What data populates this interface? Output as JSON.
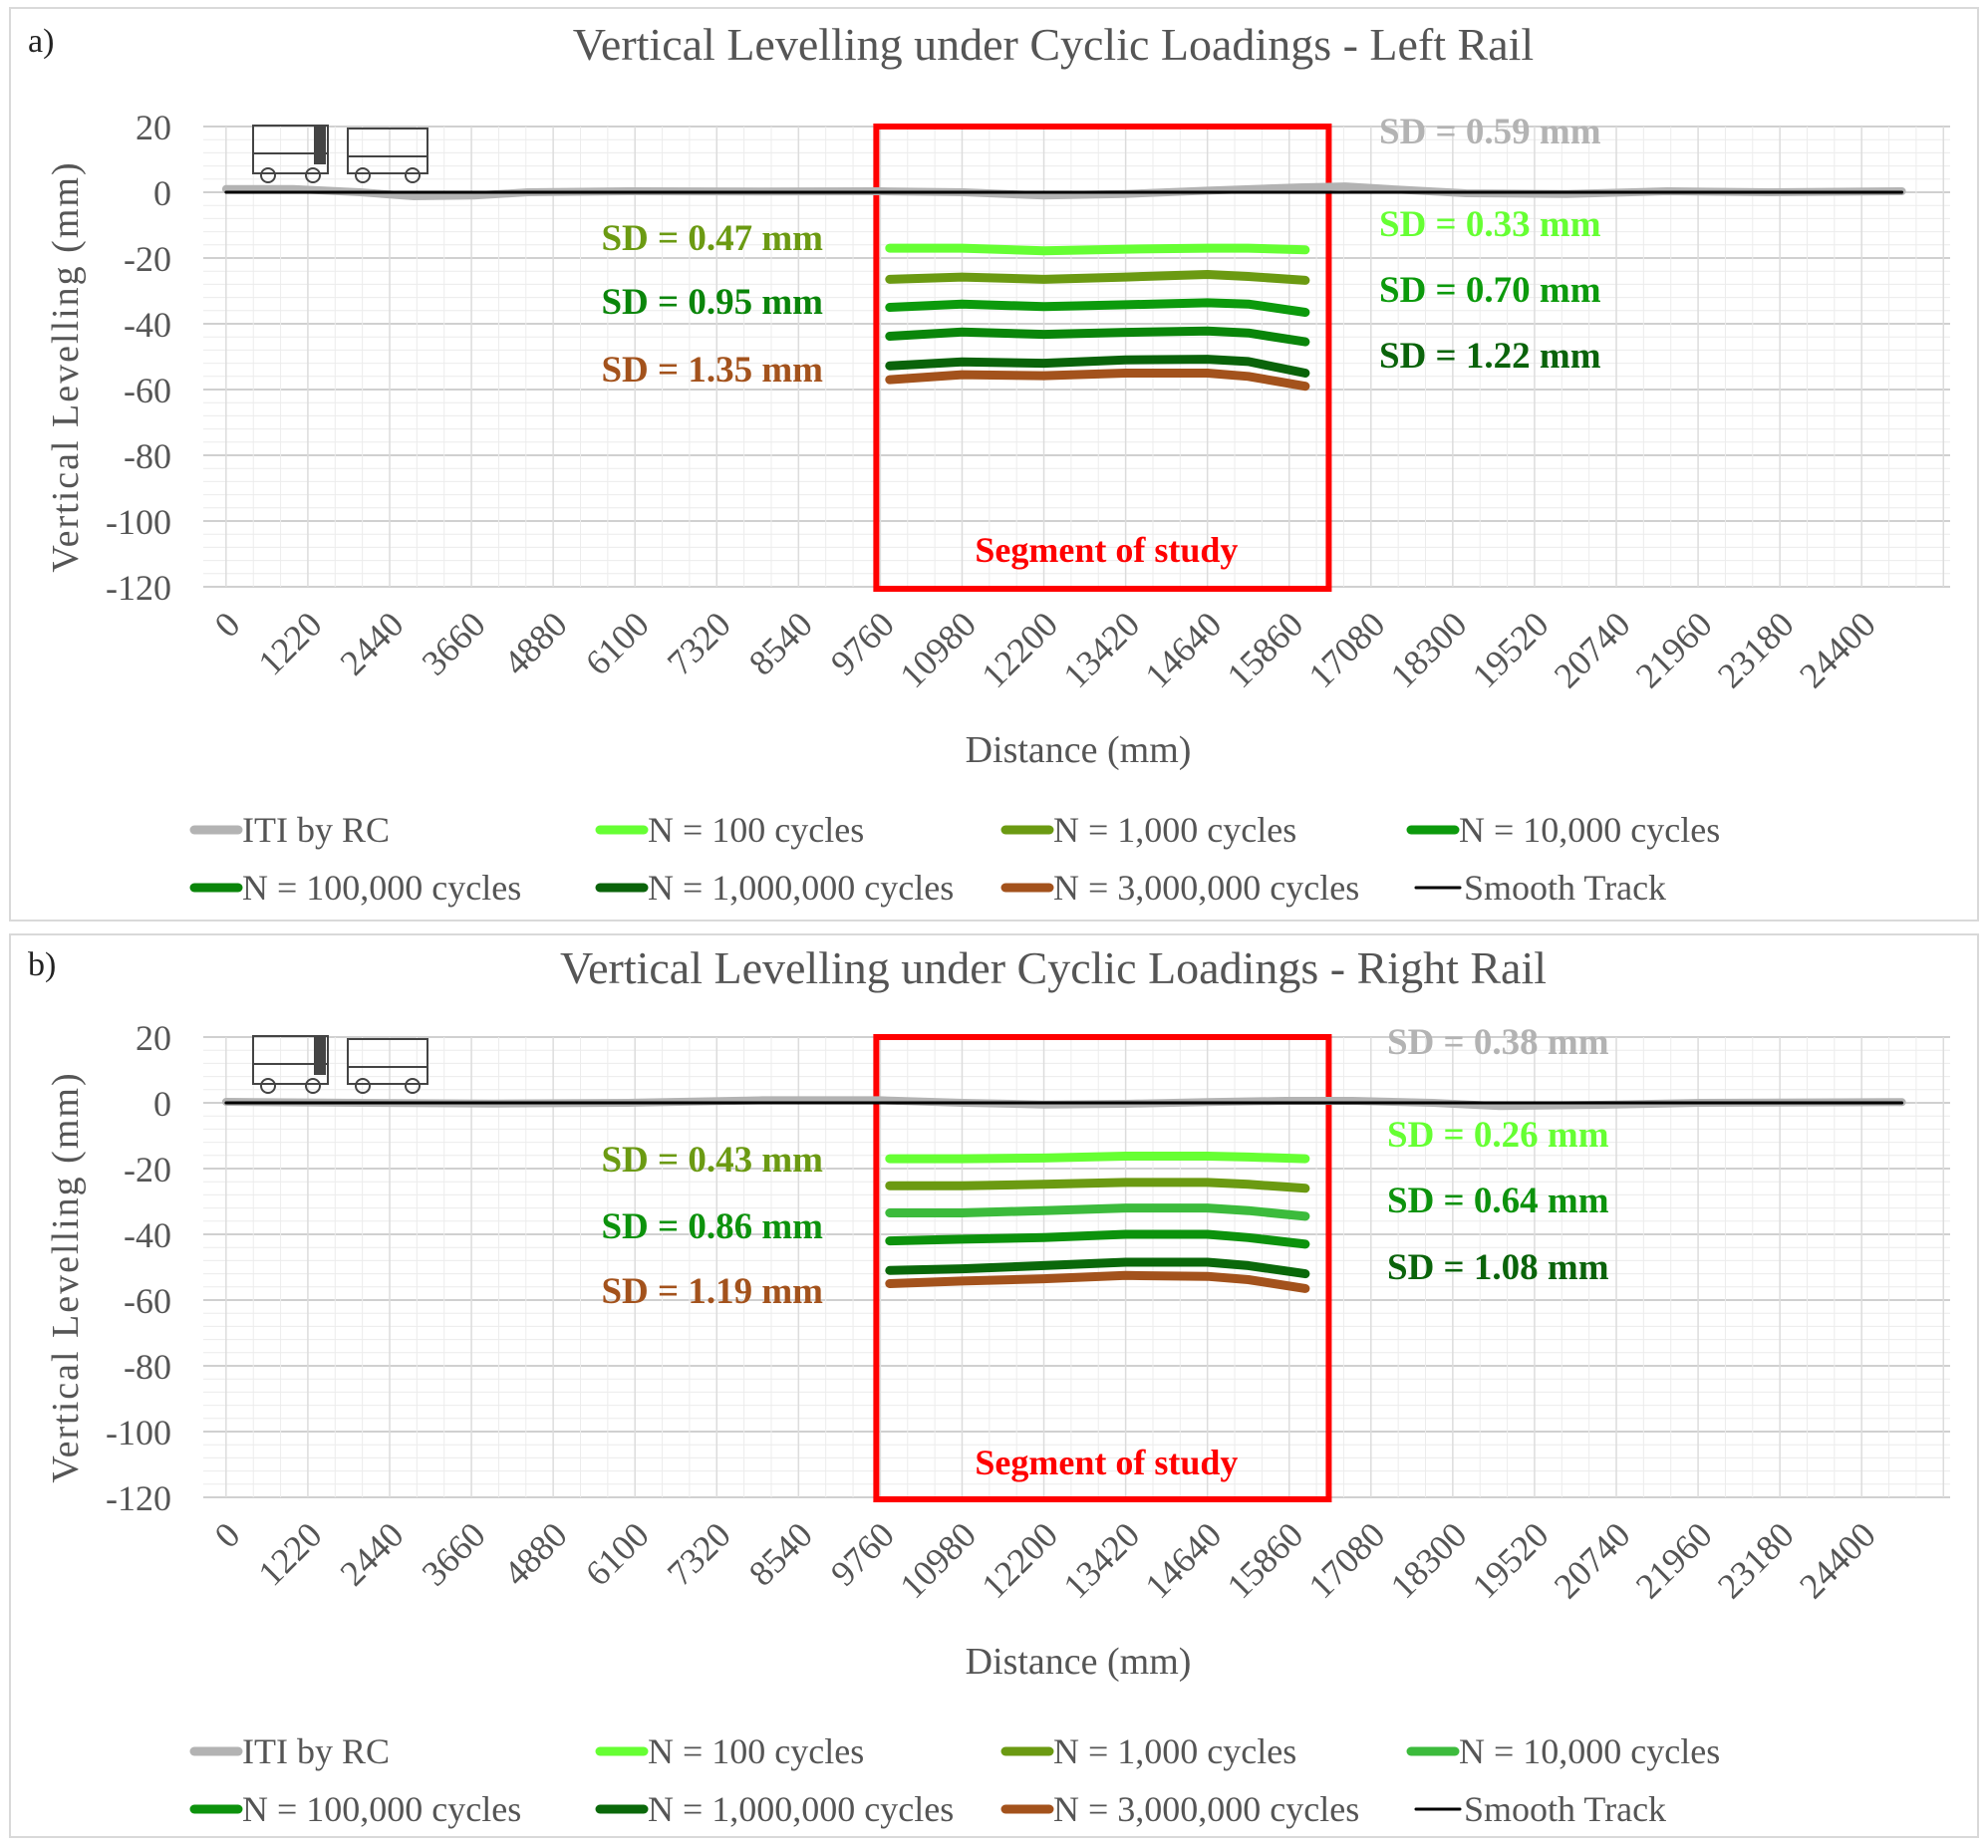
{
  "chart_data": [
    {
      "type": "line",
      "panel_label": "a)",
      "title": "Vertical Levelling under Cyclic Loadings - Left Rail",
      "xlabel": "Distance (mm)",
      "ylabel": "Vertical Levelling (mm)",
      "xlim": [
        -340,
        25720
      ],
      "ylim": [
        -120,
        20
      ],
      "grid": true,
      "x_ticks": [
        "0",
        "1220",
        "2440",
        "3660",
        "4880",
        "6100",
        "7320",
        "8540",
        "9760",
        "10980",
        "12200",
        "13420",
        "14640",
        "15860",
        "17080",
        "18300",
        "19520",
        "20740",
        "21960",
        "23180",
        "24400"
      ],
      "y_ticks": [
        20,
        0,
        -20,
        -40,
        -60,
        -80,
        -100,
        -120
      ],
      "segment": {
        "label": "Segment of study",
        "x_range": [
          9700,
          16450
        ],
        "color": "#ff0000"
      },
      "legend_placement": "bottom",
      "series": [
        {
          "name": "ITI by RC",
          "color": "#b3b3b3",
          "x": [
            0,
            1000,
            2000,
            2800,
            3700,
            4500,
            6000,
            8000,
            9760,
            11000,
            12200,
            13400,
            14640,
            16000,
            16700,
            17500,
            18500,
            20000,
            21500,
            23000,
            25000
          ],
          "y": [
            1,
            1,
            0,
            -1.2,
            -1,
            0,
            0.3,
            0.2,
            0.3,
            0,
            -1,
            -0.5,
            0.5,
            1.5,
            1.8,
            0.8,
            -0.3,
            -0.5,
            0.3,
            0,
            0.3
          ]
        },
        {
          "name": "N = 100 cycles",
          "color": "#66ff33",
          "x": [
            9900,
            10980,
            12200,
            13420,
            14640,
            15250,
            16100
          ],
          "y": [
            -17.0,
            -17.0,
            -17.8,
            -17.3,
            -17.0,
            -17.0,
            -17.5
          ]
        },
        {
          "name": "N = 1,000 cycles",
          "color": "#6b9a12",
          "x": [
            9900,
            10980,
            12200,
            13420,
            14640,
            15250,
            16100
          ],
          "y": [
            -26.5,
            -25.8,
            -26.5,
            -25.8,
            -25.0,
            -25.6,
            -26.8
          ]
        },
        {
          "name": "N = 10,000 cycles",
          "color": "#0c9a0c",
          "x": [
            9900,
            10980,
            12200,
            13420,
            14640,
            15250,
            16100
          ],
          "y": [
            -35.0,
            -34.0,
            -34.8,
            -34.2,
            -33.6,
            -34.0,
            -36.5
          ]
        },
        {
          "name": "N = 100,000 cycles",
          "color": "#0a850a",
          "x": [
            9900,
            10980,
            12200,
            13420,
            14640,
            15250,
            16100
          ],
          "y": [
            -43.8,
            -42.5,
            -43.2,
            -42.6,
            -42.2,
            -42.8,
            -45.5
          ]
        },
        {
          "name": "N = 1,000,000 cycles",
          "color": "#0a630a",
          "x": [
            9900,
            10980,
            12200,
            13420,
            14640,
            15250,
            16100
          ],
          "y": [
            -52.8,
            -51.6,
            -52.0,
            -51.0,
            -50.8,
            -51.5,
            -55.0
          ]
        },
        {
          "name": "N = 3,000,000 cycles",
          "color": "#a3521c",
          "x": [
            9900,
            10980,
            12200,
            13420,
            14640,
            15250,
            16100
          ],
          "y": [
            -57.0,
            -55.5,
            -55.8,
            -55.0,
            -55.0,
            -56.0,
            -59.0
          ]
        },
        {
          "name": "Smooth Track",
          "color": "#000000",
          "x": [
            0,
            25000
          ],
          "y": [
            0,
            0
          ]
        }
      ],
      "annotations_left": [
        {
          "text": "SD = 0.47 mm",
          "color": "#6b9a12"
        },
        {
          "text": "SD = 0.95 mm",
          "color": "#0a850a"
        },
        {
          "text": "SD = 1.35 mm",
          "color": "#a3521c"
        }
      ],
      "annotations_right": [
        {
          "text": "SD = 0.59 mm",
          "color": "#b3b3b3"
        },
        {
          "text": "SD = 0.33 mm",
          "color": "#66ff33"
        },
        {
          "text": "SD = 0.70 mm",
          "color": "#0c9a0c"
        },
        {
          "text": "SD = 1.22 mm",
          "color": "#0a630a"
        }
      ]
    },
    {
      "type": "line",
      "panel_label": "b)",
      "title": "Vertical Levelling under Cyclic Loadings - Right Rail",
      "xlabel": "Distance (mm)",
      "ylabel": "Vertical Levelling (mm)",
      "xlim": [
        -340,
        25720
      ],
      "ylim": [
        -120,
        20
      ],
      "grid": true,
      "x_ticks": [
        "0",
        "1220",
        "2440",
        "3660",
        "4880",
        "6100",
        "7320",
        "8540",
        "9760",
        "10980",
        "12200",
        "13420",
        "14640",
        "15860",
        "17080",
        "18300",
        "19520",
        "20740",
        "21960",
        "23180",
        "24400"
      ],
      "y_ticks": [
        20,
        0,
        -20,
        -40,
        -60,
        -80,
        -100,
        -120
      ],
      "segment": {
        "label": "Segment of study",
        "x_range": [
          9700,
          16450
        ],
        "color": "#ff0000"
      },
      "legend_placement": "bottom",
      "series": [
        {
          "name": "ITI by RC",
          "color": "#b3b3b3",
          "x": [
            0,
            2000,
            4000,
            6000,
            8000,
            9760,
            11000,
            12200,
            13400,
            14640,
            15800,
            16800,
            18000,
            19000,
            20500,
            22000,
            25000
          ],
          "y": [
            0.3,
            0,
            -0.2,
            0,
            0.8,
            0.8,
            0,
            -0.5,
            -0.3,
            0.2,
            0.6,
            0.6,
            0,
            -1,
            -0.6,
            0,
            0.2
          ]
        },
        {
          "name": "N = 100 cycles",
          "color": "#66ff33",
          "x": [
            9900,
            10980,
            12200,
            13420,
            14640,
            15250,
            16100
          ],
          "y": [
            -17.0,
            -17.0,
            -16.8,
            -16.2,
            -16.2,
            -16.5,
            -17.0
          ]
        },
        {
          "name": "N = 1,000 cycles",
          "color": "#6b9a12",
          "x": [
            9900,
            10980,
            12200,
            13420,
            14640,
            15250,
            16100
          ],
          "y": [
            -25.2,
            -25.2,
            -24.8,
            -24.2,
            -24.2,
            -24.8,
            -26.0
          ]
        },
        {
          "name": "N = 10,000 cycles",
          "color": "#3cbb3c",
          "x": [
            9900,
            10980,
            12200,
            13420,
            14640,
            15250,
            16100
          ],
          "y": [
            -33.5,
            -33.5,
            -32.8,
            -32.0,
            -32.0,
            -32.8,
            -34.5
          ]
        },
        {
          "name": "N = 100,000 cycles",
          "color": "#0c920c",
          "x": [
            9900,
            10980,
            12200,
            13420,
            14640,
            15250,
            16100
          ],
          "y": [
            -42.0,
            -41.5,
            -41.0,
            -40.0,
            -40.0,
            -41.0,
            -43.0
          ]
        },
        {
          "name": "N = 1,000,000 cycles",
          "color": "#0a680a",
          "x": [
            9900,
            10980,
            12200,
            13420,
            14640,
            15250,
            16100
          ],
          "y": [
            -51.0,
            -50.5,
            -49.5,
            -48.5,
            -48.5,
            -49.5,
            -52.0
          ]
        },
        {
          "name": "N = 3,000,000 cycles",
          "color": "#a3521c",
          "x": [
            9900,
            10980,
            12200,
            13420,
            14640,
            15250,
            16100
          ],
          "y": [
            -55.0,
            -54.2,
            -53.5,
            -52.5,
            -52.8,
            -53.8,
            -56.5
          ]
        },
        {
          "name": "Smooth Track",
          "color": "#000000",
          "x": [
            0,
            25000
          ],
          "y": [
            0,
            0
          ]
        }
      ],
      "annotations_left": [
        {
          "text": "SD = 0.43 mm",
          "color": "#6b9a12"
        },
        {
          "text": "SD = 0.86 mm",
          "color": "#0c920c"
        },
        {
          "text": "SD = 1.19 mm",
          "color": "#a3521c"
        }
      ],
      "annotations_right": [
        {
          "text": "SD = 0.38 mm",
          "color": "#b3b3b3"
        },
        {
          "text": "SD = 0.26 mm",
          "color": "#66ff33"
        },
        {
          "text": "SD = 0.64 mm",
          "color": "#0c920c"
        },
        {
          "text": "SD = 1.08 mm",
          "color": "#0a630a"
        }
      ]
    }
  ]
}
